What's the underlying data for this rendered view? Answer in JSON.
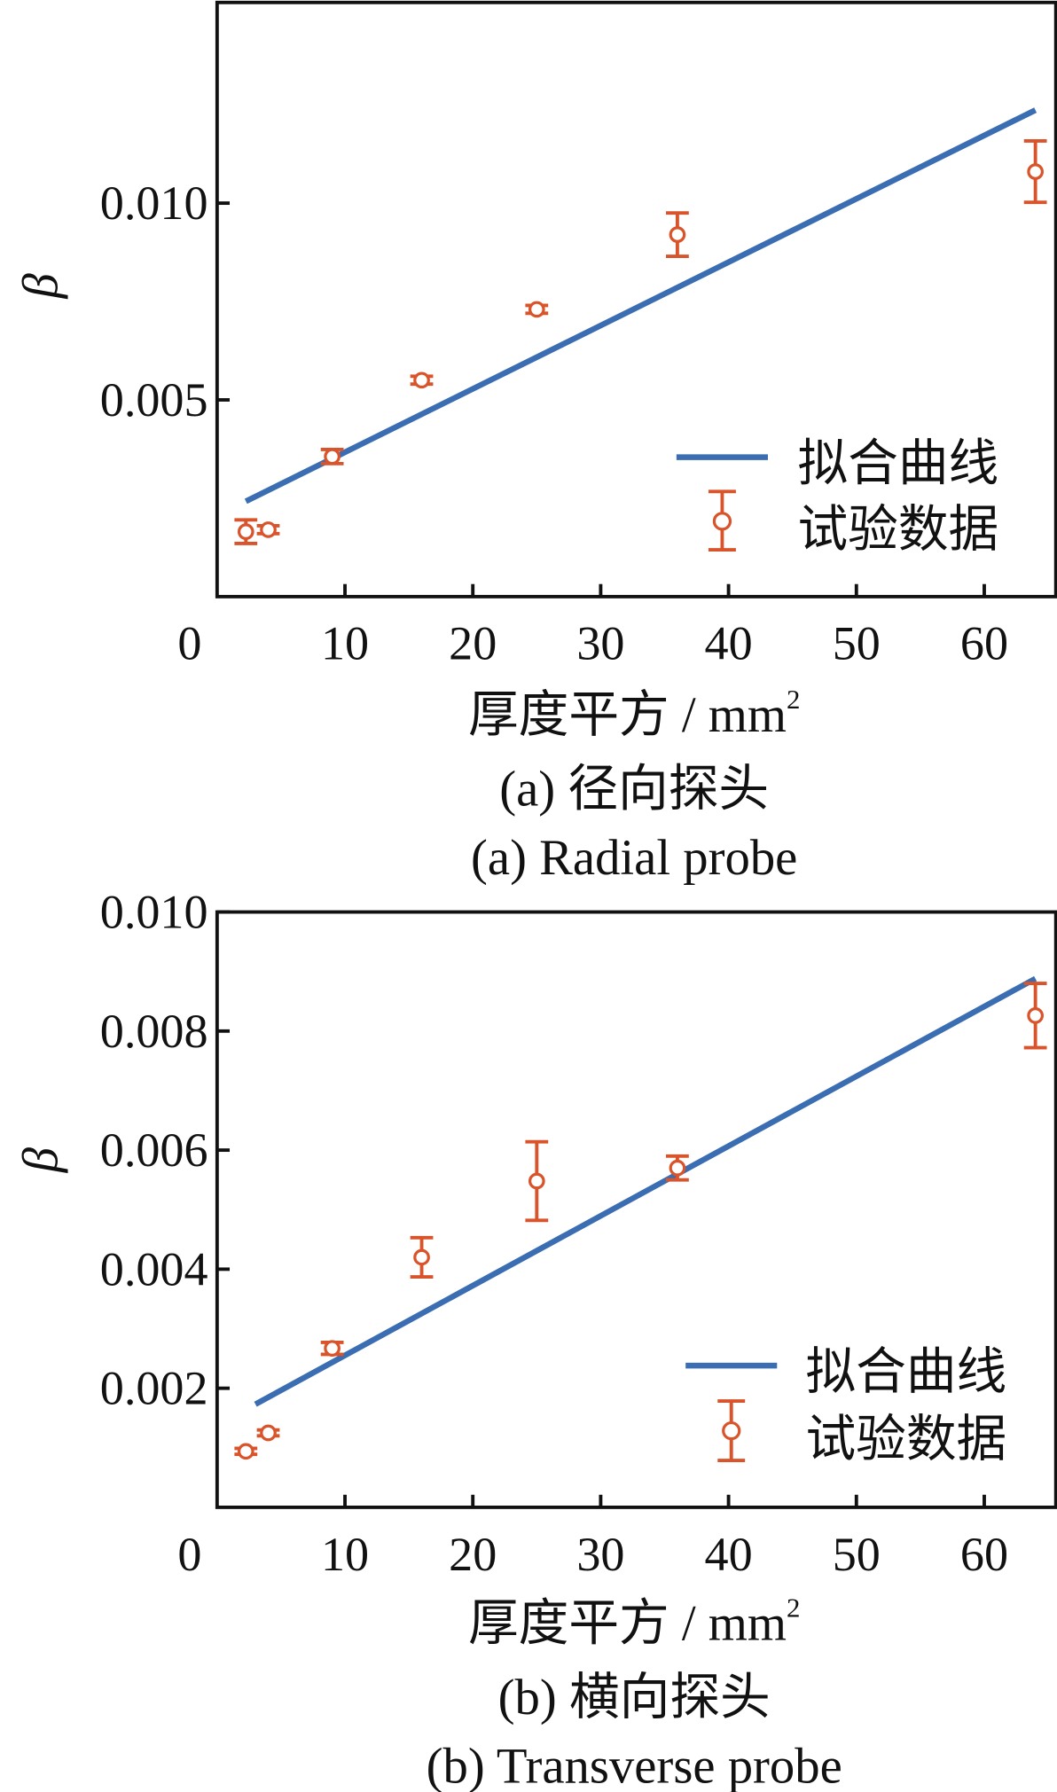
{
  "colors": {
    "fit": "#3a6db1",
    "data": "#d9532b",
    "axis": "#111111"
  },
  "chart_data": [
    {
      "type": "scatter",
      "title": "",
      "caption_cn": "(a)  径向探头",
      "caption_en": "(a)  Radial probe",
      "xlabel": "厚度平方 / mm",
      "xlabel_sup": "2",
      "ylabel": "β",
      "xlim": [
        0,
        65.6
      ],
      "ylim": [
        0,
        0.0151
      ],
      "xticks": [
        0,
        10,
        20,
        30,
        40,
        50,
        60
      ],
      "xtick_labels": [
        "0",
        "10",
        "20",
        "30",
        "40",
        "50",
        "60"
      ],
      "yticks": [
        0.005,
        0.01
      ],
      "ytick_labels": [
        "0.005",
        "0.010"
      ],
      "legend": {
        "placement": "bottom-right",
        "fit_label": "拟合曲线",
        "data_label": "试验数据"
      },
      "fit": {
        "slope": 0.000161,
        "intercept": 0.00206,
        "x_range": [
          2.25,
          64
        ]
      },
      "points": [
        {
          "x": 2.25,
          "y": 0.00165,
          "err": 0.0003
        },
        {
          "x": 4,
          "y": 0.0017,
          "err": 0.0001
        },
        {
          "x": 9,
          "y": 0.00356,
          "err": 0.00018
        },
        {
          "x": 16,
          "y": 0.0055,
          "err": 0.0001
        },
        {
          "x": 25,
          "y": 0.0073,
          "err": 0.0001
        },
        {
          "x": 36,
          "y": 0.0092,
          "err": 0.00055
        },
        {
          "x": 64,
          "y": 0.0108,
          "err": 0.00078
        }
      ]
    },
    {
      "type": "scatter",
      "title": "",
      "caption_cn": "(b)  横向探头",
      "caption_en": "(b)  Transverse probe",
      "xlabel": "厚度平方 / mm",
      "xlabel_sup": "2",
      "ylabel": "β",
      "xlim": [
        0,
        65.6
      ],
      "ylim": [
        0,
        0.01
      ],
      "xticks": [
        0,
        10,
        20,
        30,
        40,
        50,
        60
      ],
      "xtick_labels": [
        "0",
        "10",
        "20",
        "30",
        "40",
        "50",
        "60"
      ],
      "yticks": [
        0.002,
        0.004,
        0.006,
        0.008,
        0.01
      ],
      "ytick_labels": [
        "0.002",
        "0.004",
        "0.006",
        "0.008",
        "0.010"
      ],
      "legend": {
        "placement": "bottom-right",
        "fit_label": "拟合曲线",
        "data_label": "试验数据"
      },
      "fit": {
        "slope": 0.0001172,
        "intercept": 0.00138,
        "x_range": [
          3,
          64
        ]
      },
      "points": [
        {
          "x": 2.25,
          "y": 0.00094,
          "err": 5e-05
        },
        {
          "x": 4,
          "y": 0.00125,
          "err": 5e-05
        },
        {
          "x": 9,
          "y": 0.00267,
          "err": 0.0001
        },
        {
          "x": 16,
          "y": 0.0042,
          "err": 0.00033
        },
        {
          "x": 25,
          "y": 0.00548,
          "err": 0.00066
        },
        {
          "x": 36,
          "y": 0.0057,
          "err": 0.0002
        },
        {
          "x": 64,
          "y": 0.00826,
          "err": 0.00054
        }
      ]
    }
  ]
}
